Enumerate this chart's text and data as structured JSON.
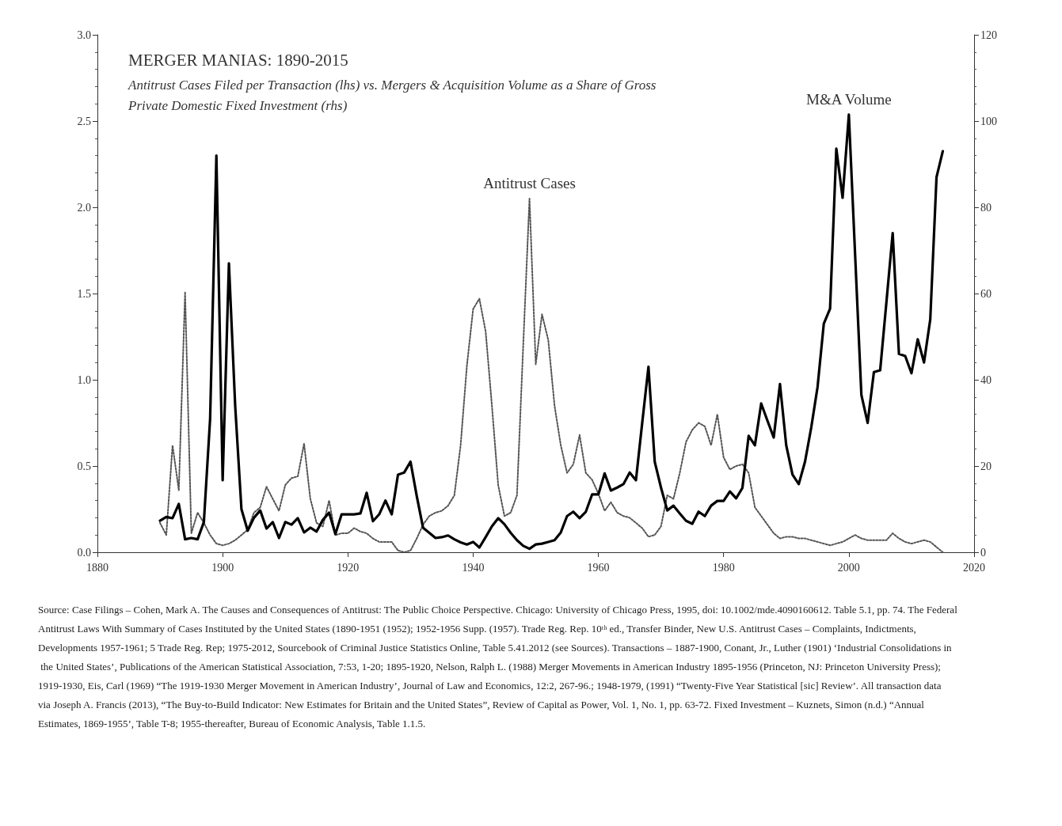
{
  "chart_data": {
    "type": "line",
    "title": "MERGER MANIAS: 1890-2015",
    "subtitle": "Antitrust Cases Filed per Transaction (lhs) vs. Mergers & Acquisition Volume as a Share of Gross Private Domestic Fixed Investment (rhs)",
    "x": [
      1890,
      1891,
      1892,
      1893,
      1894,
      1895,
      1896,
      1897,
      1898,
      1899,
      1900,
      1901,
      1902,
      1903,
      1904,
      1905,
      1906,
      1907,
      1908,
      1909,
      1910,
      1911,
      1912,
      1913,
      1914,
      1915,
      1916,
      1917,
      1918,
      1919,
      1920,
      1921,
      1922,
      1923,
      1924,
      1925,
      1926,
      1927,
      1928,
      1929,
      1930,
      1931,
      1932,
      1933,
      1934,
      1935,
      1936,
      1937,
      1938,
      1939,
      1940,
      1941,
      1942,
      1943,
      1944,
      1945,
      1946,
      1947,
      1948,
      1949,
      1950,
      1951,
      1952,
      1953,
      1954,
      1955,
      1956,
      1957,
      1958,
      1959,
      1960,
      1961,
      1962,
      1963,
      1964,
      1965,
      1966,
      1967,
      1968,
      1969,
      1970,
      1971,
      1972,
      1973,
      1974,
      1975,
      1976,
      1977,
      1978,
      1979,
      1980,
      1981,
      1982,
      1983,
      1984,
      1985,
      1986,
      1987,
      1988,
      1989,
      1990,
      1991,
      1992,
      1993,
      1994,
      1995,
      1996,
      1997,
      1998,
      1999,
      2000,
      2001,
      2002,
      2003,
      2004,
      2005,
      2006,
      2007,
      2008,
      2009,
      2010,
      2011,
      2012,
      2013,
      2014,
      2015
    ],
    "series": [
      {
        "name": "Antitrust Cases",
        "color": "#555555",
        "line_style": "dotted",
        "values": [
          0.17,
          0.1,
          0.62,
          0.36,
          1.51,
          0.11,
          0.23,
          0.17,
          0.1,
          0.05,
          0.04,
          0.05,
          0.07,
          0.1,
          0.13,
          0.23,
          0.26,
          0.38,
          0.31,
          0.24,
          0.39,
          0.43,
          0.44,
          0.63,
          0.31,
          0.17,
          0.15,
          0.3,
          0.1,
          0.11,
          0.11,
          0.14,
          0.12,
          0.11,
          0.08,
          0.06,
          0.06,
          0.06,
          0.01,
          0.0,
          0.01,
          0.08,
          0.16,
          0.21,
          0.23,
          0.24,
          0.27,
          0.33,
          0.62,
          1.08,
          1.41,
          1.47,
          1.28,
          0.85,
          0.39,
          0.21,
          0.23,
          0.33,
          1.2,
          2.05,
          1.09,
          1.38,
          1.23,
          0.85,
          0.62,
          0.46,
          0.51,
          0.68,
          0.46,
          0.42,
          0.34,
          0.24,
          0.29,
          0.23,
          0.21,
          0.2,
          0.17,
          0.14,
          0.09,
          0.1,
          0.15,
          0.33,
          0.31,
          0.46,
          0.64,
          0.71,
          0.75,
          0.73,
          0.62,
          0.8,
          0.55,
          0.48,
          0.5,
          0.51,
          0.46,
          0.26,
          0.21,
          0.16,
          0.11,
          0.08,
          0.09,
          0.09,
          0.08,
          0.08,
          0.07,
          0.06,
          0.05,
          0.04,
          0.05,
          0.06,
          0.08,
          0.1,
          0.08,
          0.07,
          0.07,
          0.07,
          0.07,
          0.11,
          0.08,
          0.06,
          0.05,
          0.06,
          0.07,
          0.06,
          0.03,
          0.0
        ]
      },
      {
        "name": "M&A Volume",
        "color": "#000000",
        "line_style": "solid",
        "axis": "y2",
        "values": [
          7.3,
          8.2,
          7.9,
          11.2,
          3,
          3.3,
          3,
          7,
          31,
          92,
          16.7,
          67,
          34,
          10,
          5,
          8,
          9.7,
          5.5,
          7,
          3.3,
          7,
          6.4,
          7.9,
          4.6,
          5.7,
          4.8,
          7.5,
          9.2,
          4.2,
          8.8,
          8.8,
          8.8,
          9,
          13.8,
          7.2,
          8.8,
          12,
          8.8,
          18,
          18.5,
          21,
          13,
          5.7,
          4.5,
          3.3,
          3.5,
          3.9,
          3,
          2.3,
          1.8,
          2.4,
          1.1,
          3.5,
          6,
          7.9,
          6.5,
          4.5,
          2.8,
          1.5,
          0.8,
          1.8,
          2,
          2.4,
          2.8,
          4.6,
          8.4,
          9.4,
          7.9,
          9.4,
          13.4,
          13.4,
          18.3,
          14.3,
          15,
          15.8,
          18.5,
          16.7,
          30,
          43,
          21,
          15,
          9.7,
          10.8,
          9,
          7.3,
          6.6,
          9.4,
          8.4,
          10.8,
          11.9,
          11.9,
          14.1,
          12.5,
          14.9,
          27,
          24.8,
          34.5,
          30.5,
          26.6,
          39,
          24.8,
          18,
          15.8,
          21,
          29,
          38.3,
          53,
          56.5,
          93.6,
          82.2,
          101.5,
          69,
          36.5,
          30,
          41.8,
          42.2,
          58,
          74,
          46,
          45.5,
          41.5,
          49.4,
          44,
          54,
          87,
          93
        ]
      }
    ],
    "xlim": [
      1880,
      2020
    ],
    "xticks": [
      1880,
      1900,
      1920,
      1940,
      1960,
      1980,
      2000,
      2020
    ],
    "ylim": [
      0,
      3
    ],
    "yticks": [
      {
        "value": 0,
        "label": "0.0"
      },
      {
        "value": 0.5,
        "label": "0.5"
      },
      {
        "value": 1,
        "label": "1.0"
      },
      {
        "value": 1.5,
        "label": "1.5"
      },
      {
        "value": 2,
        "label": "2.0"
      },
      {
        "value": 2.5,
        "label": "2.5"
      },
      {
        "value": 3,
        "label": "3.0"
      }
    ],
    "y2lim": [
      0,
      120
    ],
    "y2ticks": [
      0,
      20,
      40,
      60,
      80,
      100,
      120
    ],
    "marker": "none",
    "annotations": [
      "Source: Case Filings – Cohen, Mark A. The Causes and Consequences of Antitrust: The Public Choice Perspective. Chicago: University of Chicago Press, 1995, doi: 10.1002/mde.4090160612. Table 5.1, pp. 74. The Federal Antitrust Laws With Summary of Cases Instituted by the United States (1890-1951 (1952); 1952-1956 Supp. (1957). Trade Reg. Rep. 10ᵗʰ ed., Transfer Binder, New U.S. Antitrust Cases – Complaints, Indictments, Developments 1957-1961; 5 Trade Reg. Rep; 1975-2012, Sourcebook of Criminal Justice Statistics Online, Table 5.41.2012 (see Sources). Transactions – 1887-1900, Conant, Jr., Luther (1901) ‘Industrial Consolidations in the United States’, Publications of the American Statistical Association, 7:53, 1-20; 1895-1920, Nelson, Ralph L. (1988) Merger Movements in American Industry 1895-1956 (Princeton, NJ: Princeton University Press); 1919-1930, Eis, Carl (1969) “The 1919-1930 Merger Movement in American Industry’, Journal of Law and Economics, 12:2, 267-96.; 1948-1979, (1991) “Twenty-Five Year Statistical [sic] Review’. All transaction data via Joseph A. Francis (2013), “The Buy-to-Build Indicator: New Estimates for Britain and the United States”, Review of Capital as Power, Vol. 1, No. 1, pp. 63-72. Fixed Investment – Kuznets, Simon (n.d.) “Annual Estimates, 1869-1955’, Table T-8; 1955-thereafter, Bureau of Economic Analysis, Table 1.1.5."
    ]
  }
}
